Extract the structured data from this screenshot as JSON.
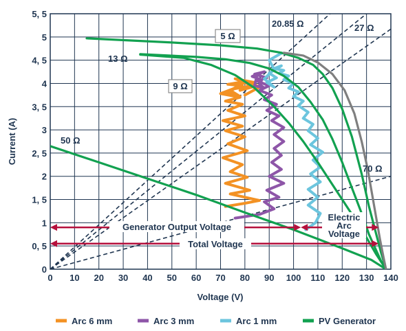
{
  "chart_data": {
    "type": "line",
    "xlabel": "Voltage (V)",
    "ylabel": "Current (A)",
    "xlim": [
      0,
      140
    ],
    "ylim": [
      0,
      5.5
    ],
    "x_ticks": [
      0,
      10,
      20,
      30,
      40,
      50,
      60,
      70,
      80,
      90,
      100,
      110,
      120,
      130,
      140
    ],
    "x_tick_labels": [
      "0",
      "10",
      "20",
      "30",
      "40",
      "50",
      "60",
      "70",
      "80",
      "90",
      "100",
      "110",
      "120",
      "130",
      "140"
    ],
    "y_ticks": [
      0,
      0.5,
      1,
      1.5,
      2,
      2.5,
      3,
      3.5,
      4,
      4.5,
      5,
      5.5
    ],
    "y_tick_labels": [
      "0",
      "0, 5",
      "1",
      "1, 5",
      "2",
      "2, 5",
      "3",
      "3, 5",
      "4",
      "4, 5",
      "5",
      "5, 5"
    ],
    "grid": true,
    "legend_position": "bottom",
    "colors": {
      "pv": "#12a150",
      "pv_gray": "#7f7f7f",
      "arc6": "#f39224",
      "arc3": "#8e56a8",
      "arc1": "#6cc5de",
      "arrow": "#b5103c",
      "dashed": "#1f3550"
    },
    "series": [
      {
        "name": "PV Generator",
        "color": "#12a150",
        "x": [
          15,
          50,
          70,
          85,
          95,
          102,
          108,
          112,
          116,
          120,
          124,
          128,
          131,
          134,
          136,
          138
        ],
        "y": [
          4.97,
          4.88,
          4.82,
          4.75,
          4.66,
          4.55,
          4.4,
          4.2,
          3.9,
          3.45,
          2.85,
          2.05,
          1.35,
          0.75,
          0.35,
          0
        ]
      },
      {
        "name": "",
        "color": "#12a150",
        "x": [
          37,
          60,
          72,
          82,
          90,
          96,
          102,
          107,
          112,
          116,
          120,
          124,
          128,
          131,
          134,
          136,
          138
        ],
        "y": [
          4.63,
          4.57,
          4.52,
          4.44,
          4.32,
          4.16,
          3.92,
          3.6,
          3.22,
          2.8,
          2.3,
          1.75,
          1.2,
          0.75,
          0.4,
          0.17,
          0
        ]
      },
      {
        "name": "",
        "color": "#12a150",
        "x": [
          37,
          55,
          66,
          76,
          84,
          92,
          98,
          104,
          110,
          115,
          120,
          125,
          130,
          134,
          137,
          138
        ],
        "y": [
          4.62,
          4.55,
          4.4,
          4.18,
          3.9,
          3.5,
          3.15,
          2.75,
          2.3,
          1.9,
          1.5,
          1.1,
          0.68,
          0.32,
          0.08,
          0
        ]
      },
      {
        "name": "",
        "color": "#12a150",
        "x": [
          0,
          20,
          40,
          60,
          80,
          100,
          120,
          132,
          138
        ],
        "y": [
          2.65,
          2.3,
          1.95,
          1.6,
          1.22,
          0.85,
          0.45,
          0.2,
          0
        ]
      },
      {
        "name": "",
        "color": "#7f7f7f",
        "x": [
          96,
          104,
          110,
          116,
          121,
          125,
          128,
          130.5,
          132.5,
          134,
          135.5,
          137,
          138
        ],
        "y": [
          4.66,
          4.6,
          4.45,
          4.2,
          3.85,
          3.35,
          2.75,
          2.15,
          1.55,
          1.1,
          0.65,
          0.25,
          0
        ]
      },
      {
        "name": "Arc 6 mm",
        "color": "#f39224",
        "x": [
          72,
          80,
          86,
          74,
          82,
          72,
          81,
          74,
          79,
          71,
          81,
          73,
          80,
          72,
          79,
          71,
          80,
          73,
          79,
          72,
          78,
          70,
          76,
          72,
          78,
          74,
          79,
          73,
          81,
          75,
          83,
          76,
          84,
          78,
          85,
          80,
          86,
          80
        ],
        "y": [
          1.35,
          1.42,
          1.48,
          1.62,
          1.7,
          1.85,
          1.98,
          2.1,
          2.25,
          2.4,
          2.55,
          2.7,
          2.85,
          2.98,
          3.08,
          3.2,
          3.3,
          3.42,
          3.55,
          3.62,
          3.7,
          3.78,
          3.9,
          3.82,
          3.72,
          3.85,
          3.95,
          3.98,
          4.05,
          3.88,
          3.95,
          4.1,
          4.02,
          3.85,
          3.95,
          4.05,
          3.92,
          3.75
        ]
      },
      {
        "name": "Arc 3 mm",
        "color": "#8e56a8",
        "x": [
          76,
          86,
          92,
          88,
          94,
          89,
          96,
          90,
          95,
          91,
          95,
          92,
          96,
          92,
          96,
          91,
          94,
          89,
          93,
          88,
          91,
          86,
          90,
          85,
          89,
          84,
          88,
          83,
          87,
          86,
          88,
          84,
          85
        ],
        "y": [
          1.1,
          1.18,
          1.3,
          1.45,
          1.55,
          1.7,
          1.85,
          2.0,
          2.15,
          2.3,
          2.45,
          2.6,
          2.75,
          2.9,
          3.05,
          3.2,
          3.3,
          3.42,
          3.55,
          3.65,
          3.75,
          3.85,
          3.95,
          4.05,
          4.12,
          4.2,
          4.25,
          4.15,
          4.08,
          3.98,
          3.9,
          3.95,
          4.18
        ]
      },
      {
        "name": "Arc 1 mm",
        "color": "#6cc5de",
        "x": [
          105,
          109,
          111,
          106,
          110,
          106,
          111,
          107,
          111,
          108,
          112,
          107,
          110,
          106,
          108,
          104,
          106,
          102,
          104,
          100,
          102,
          98,
          100,
          96,
          98,
          94,
          96,
          92,
          95,
          90,
          93,
          89,
          92,
          88,
          90,
          92,
          90,
          95
        ],
        "y": [
          0.85,
          1.0,
          1.2,
          1.38,
          1.55,
          1.72,
          1.88,
          2.05,
          2.2,
          2.35,
          2.52,
          2.68,
          2.82,
          2.98,
          3.12,
          3.25,
          3.38,
          3.52,
          3.62,
          3.72,
          3.82,
          3.9,
          4.0,
          4.08,
          4.16,
          4.22,
          4.28,
          4.32,
          4.38,
          4.22,
          4.12,
          4.02,
          3.92,
          4.1,
          4.2,
          4.3,
          4.5,
          4.65
        ]
      }
    ],
    "dashed_lines": [
      {
        "name": "",
        "x": [
          0,
          130
        ],
        "y": [
          0,
          5.5
        ]
      },
      {
        "name": "",
        "x": [
          0,
          115
        ],
        "y": [
          0,
          5.5
        ]
      },
      {
        "name": "",
        "x": [
          0,
          140
        ],
        "y": [
          0,
          5.17
        ]
      },
      {
        "name": "",
        "x": [
          0,
          140
        ],
        "y": [
          0,
          2.0
        ]
      }
    ],
    "annotations": {
      "r5": "5 Ω",
      "r2085": "20.85 Ω",
      "r27": "27 Ω",
      "r13": "13 Ω",
      "r9": "9 Ω",
      "r50": "50 Ω",
      "r70": "70 Ω",
      "electric_arc": [
        "Electric",
        "Arc",
        "Voltage"
      ],
      "gen_output": "Generator Output Voltage",
      "total_voltage": "Total Voltage"
    },
    "arrows": [
      {
        "name": "generator-output-voltage",
        "x1": 0,
        "x2": 103,
        "y": 0.9
      },
      {
        "name": "electric-arc-voltage",
        "x1": 103,
        "x2": 135,
        "y": 0.9
      },
      {
        "name": "total-voltage",
        "x1": 0,
        "x2": 135,
        "y": 0.55
      }
    ],
    "legend": [
      {
        "label": "Arc 6 mm",
        "color": "#f39224"
      },
      {
        "label": "Arc 3 mm",
        "color": "#8e56a8"
      },
      {
        "label": "Arc 1 mm",
        "color": "#6cc5de"
      },
      {
        "label": "PV Generator",
        "color": "#12a150"
      }
    ]
  }
}
